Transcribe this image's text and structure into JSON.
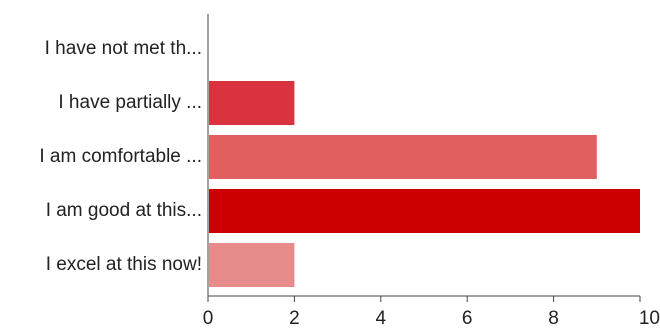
{
  "chart_data": {
    "type": "bar",
    "orientation": "horizontal",
    "categories": [
      "I have not met th...",
      "I have partially ...",
      "I am comfortable ...",
      "I am good at this...",
      "I excel at this now!"
    ],
    "values": [
      0,
      2,
      9,
      10,
      2
    ],
    "bar_colors": [
      "#d9333f",
      "#d9333f",
      "#e06060",
      "#cc0000",
      "#e88b8b"
    ],
    "xlim": [
      0,
      10
    ],
    "x_ticks": [
      "0",
      "2",
      "4",
      "6",
      "8",
      "10"
    ],
    "title": "",
    "xlabel": "",
    "ylabel": "",
    "grid": false,
    "legend": "none"
  }
}
